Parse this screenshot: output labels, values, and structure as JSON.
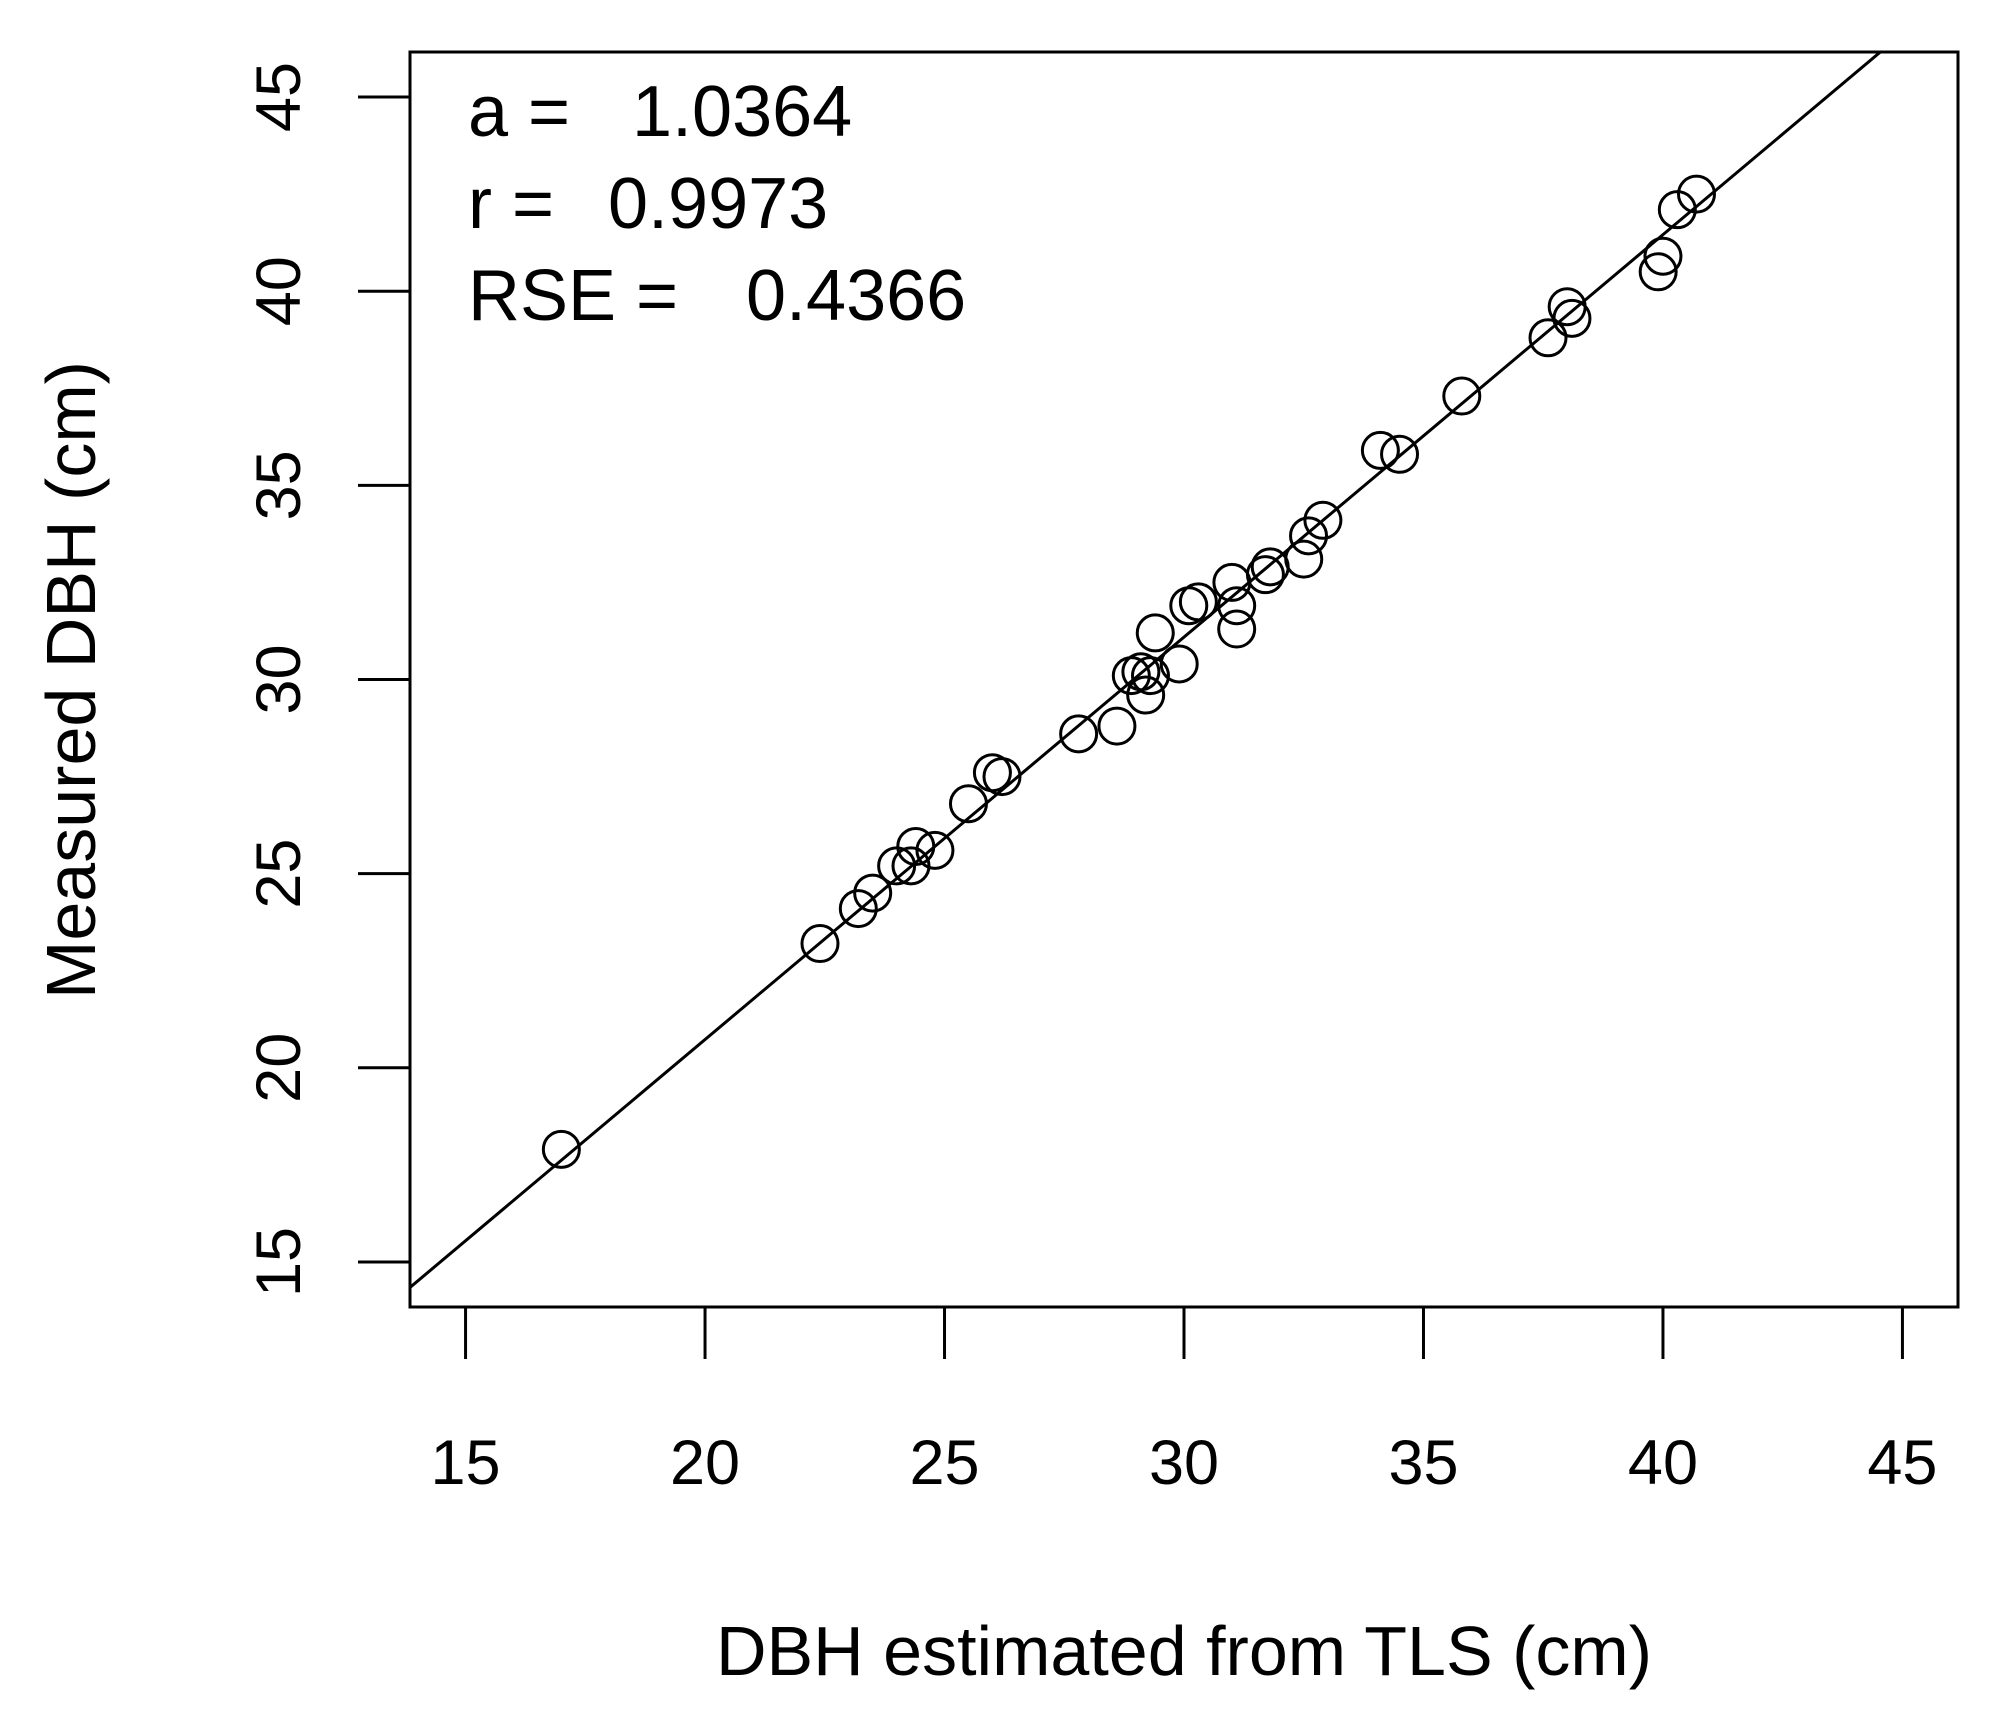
{
  "chart_data": {
    "type": "scatter",
    "xlabel": "DBH estimated from TLS (cm)",
    "ylabel": "Measured DBH (cm)",
    "xlim": [
      13.84,
      46.16
    ],
    "ylim": [
      13.84,
      46.16
    ],
    "x_ticks": [
      15,
      20,
      25,
      30,
      35,
      40,
      45
    ],
    "y_ticks": [
      15,
      20,
      25,
      30,
      35,
      40,
      45
    ],
    "grid": false,
    "legend": "none",
    "annotations": [
      {
        "label": "a =",
        "value": "1.0364"
      },
      {
        "label": "r =",
        "value": "0.9973"
      },
      {
        "label": "RSE =",
        "value": "0.4366"
      }
    ],
    "fit_line": {
      "slope": 1.0364,
      "intercept": 0
    },
    "marker": "open-circle",
    "color": "#000000",
    "points": [
      {
        "x": 17.0,
        "y": 17.9
      },
      {
        "x": 22.4,
        "y": 23.2
      },
      {
        "x": 23.2,
        "y": 24.1
      },
      {
        "x": 23.5,
        "y": 24.5
      },
      {
        "x": 24.0,
        "y": 25.2
      },
      {
        "x": 24.3,
        "y": 25.2
      },
      {
        "x": 24.4,
        "y": 25.7
      },
      {
        "x": 24.8,
        "y": 25.6
      },
      {
        "x": 25.5,
        "y": 26.8
      },
      {
        "x": 26.0,
        "y": 27.6
      },
      {
        "x": 26.2,
        "y": 27.5
      },
      {
        "x": 27.8,
        "y": 28.6
      },
      {
        "x": 28.6,
        "y": 28.8
      },
      {
        "x": 28.9,
        "y": 30.1
      },
      {
        "x": 29.1,
        "y": 30.2
      },
      {
        "x": 29.2,
        "y": 29.6
      },
      {
        "x": 29.3,
        "y": 30.1
      },
      {
        "x": 29.4,
        "y": 31.2
      },
      {
        "x": 29.9,
        "y": 30.4
      },
      {
        "x": 30.1,
        "y": 31.9
      },
      {
        "x": 30.3,
        "y": 32.0
      },
      {
        "x": 31.0,
        "y": 32.5
      },
      {
        "x": 31.1,
        "y": 31.9
      },
      {
        "x": 31.1,
        "y": 31.3
      },
      {
        "x": 31.7,
        "y": 32.7
      },
      {
        "x": 31.8,
        "y": 32.9
      },
      {
        "x": 32.5,
        "y": 33.1
      },
      {
        "x": 32.6,
        "y": 33.7
      },
      {
        "x": 32.9,
        "y": 34.1
      },
      {
        "x": 34.1,
        "y": 35.9
      },
      {
        "x": 34.5,
        "y": 35.8
      },
      {
        "x": 35.8,
        "y": 37.3
      },
      {
        "x": 37.6,
        "y": 38.8
      },
      {
        "x": 38.0,
        "y": 39.6
      },
      {
        "x": 38.1,
        "y": 39.3
      },
      {
        "x": 39.9,
        "y": 40.5
      },
      {
        "x": 40.0,
        "y": 40.9
      },
      {
        "x": 40.3,
        "y": 42.1
      },
      {
        "x": 40.7,
        "y": 42.5
      }
    ]
  }
}
